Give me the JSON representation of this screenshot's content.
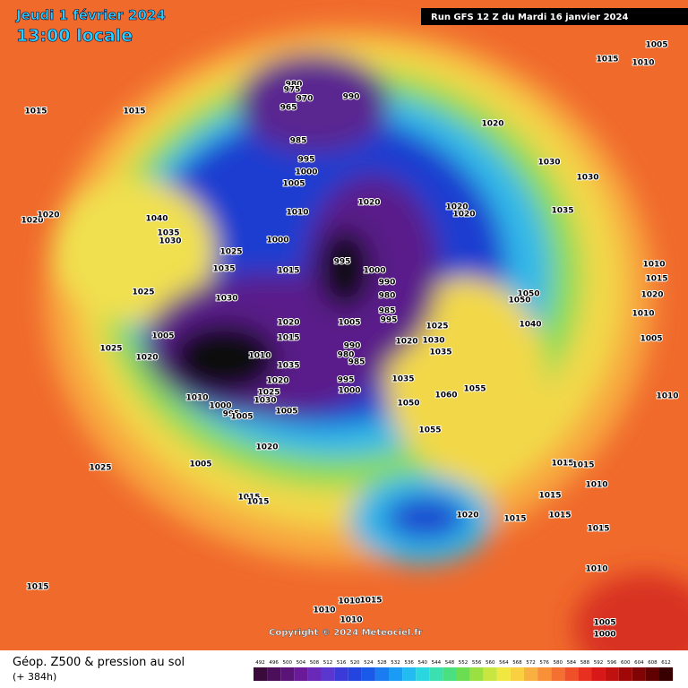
{
  "header": {
    "date": "Jeudi 1 février 2024",
    "time": "13:00 locale",
    "run": "Run GFS 12 Z du Mardi 16 janvier 2024"
  },
  "footer": {
    "title": "Géop. Z500 & pression au sol",
    "lead": "(+ 384h)",
    "copyright": "Copyright © 2024 Meteociel.fr"
  },
  "pressure_labels": [
    1015,
    1010,
    1005,
    1015,
    1015,
    980,
    975,
    970,
    965,
    990,
    985,
    995,
    1000,
    1005,
    1020,
    1030,
    1030,
    1035,
    1020,
    1020,
    1040,
    1035,
    1030,
    1025,
    1010,
    1020,
    1020,
    1020,
    1000,
    995,
    1000,
    990,
    980,
    985,
    995,
    1035,
    1015,
    1010,
    1015,
    1020,
    1050,
    1050,
    1010,
    1030,
    1020,
    1005,
    1040,
    1025,
    1025,
    1005,
    1015,
    1030,
    1020,
    1035,
    990,
    980,
    985,
    1025,
    1020,
    1010,
    1035,
    1020,
    995,
    1000,
    1035,
    1005,
    1000,
    995,
    1025,
    1030,
    1005,
    1010,
    1005,
    1060,
    1055,
    1050,
    1055,
    1010,
    1020,
    1025,
    1005,
    1015,
    1015,
    1010,
    1015,
    1015,
    1015,
    1020,
    1015,
    1015,
    1015,
    1010,
    1015,
    1010,
    1015,
    1010,
    1010,
    1005,
    1000
  ],
  "colorbar": {
    "values": [
      492,
      496,
      500,
      504,
      508,
      512,
      516,
      520,
      524,
      528,
      532,
      536,
      540,
      544,
      548,
      552,
      556,
      560,
      564,
      568,
      572,
      576,
      580,
      584,
      588,
      592,
      596,
      600,
      604,
      608,
      612
    ],
    "colors": [
      "#3a0a3a",
      "#4a0e5a",
      "#5a1478",
      "#6a1a98",
      "#6a28b8",
      "#5a38d0",
      "#3a3ad8",
      "#2444e0",
      "#1a5ae8",
      "#1a7cf0",
      "#1a9cf4",
      "#22bcf0",
      "#2ad6e0",
      "#3ae0b0",
      "#4ae080",
      "#6ade50",
      "#9ae040",
      "#c8e640",
      "#f0e840",
      "#f8d040",
      "#f8b040",
      "#f89038",
      "#f47030",
      "#f05028",
      "#e83020",
      "#d81818",
      "#c01010",
      "#a00808",
      "#800404",
      "#600000",
      "#380000"
    ]
  }
}
